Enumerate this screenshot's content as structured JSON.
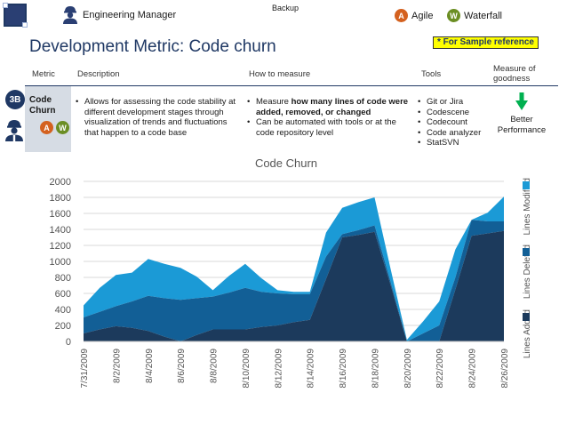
{
  "header": {
    "role_label": "Engineering Manager",
    "backup_label": "Backup",
    "agile_badge": "A",
    "agile_label": "Agile",
    "waterfall_badge": "W",
    "waterfall_label": "Waterfall"
  },
  "title": "Development Metric: Code churn",
  "reference_note": "* For Sample reference",
  "table": {
    "headers": {
      "metric": "Metric",
      "description": "Description",
      "how": "How to measure",
      "tools": "Tools",
      "goodness": "Measure of goodness"
    },
    "row": {
      "id": "3B",
      "metric_name": "Code Churn",
      "badge_a": "A",
      "badge_w": "W",
      "description": [
        "Allows for assessing the code stability at different development stages through visualization of trends and fluctuations that happen to a code base"
      ],
      "how_to_measure": [
        {
          "before": "Measure ",
          "bold": "how many lines of code were added, removed, or changed",
          "after": ""
        },
        {
          "before": "Can be automated with tools or at the code repository level",
          "bold": "",
          "after": ""
        }
      ],
      "tools": [
        "Git or Jira",
        "Codescene",
        "Codecount",
        "Code analyzer",
        "StatSVN"
      ],
      "goodness": "Better Performance"
    }
  },
  "colors": {
    "navy": "#1f3864",
    "added": "#1c3a5c",
    "deleted": "#125f96",
    "modified": "#1b9ad6",
    "arrow": "#00b050"
  },
  "chart_data": {
    "type": "area",
    "title": "Code Churn",
    "categories": [
      "7/31/2009",
      "8/1/2009",
      "8/2/2009",
      "8/3/2009",
      "8/4/2009",
      "8/5/2009",
      "8/6/2009",
      "8/7/2009",
      "8/8/2009",
      "8/9/2009",
      "8/10/2009",
      "8/11/2009",
      "8/12/2009",
      "8/13/2009",
      "8/14/2009",
      "8/15/2009",
      "8/16/2009",
      "8/17/2009",
      "8/18/2009",
      "8/19/2009",
      "8/20/2009",
      "8/21/2009",
      "8/22/2009",
      "8/23/2009",
      "8/24/2009",
      "8/25/2009",
      "8/26/2009"
    ],
    "tick_labels": [
      "7/31/2009",
      "8/2/2009",
      "8/4/2009",
      "8/6/2009",
      "8/8/2009",
      "8/10/2009",
      "8/12/2009",
      "8/14/2009",
      "8/16/2009",
      "8/18/2009",
      "8/20/2009",
      "8/22/2009",
      "8/24/2009",
      "8/26/2009"
    ],
    "stacked": true,
    "ylim": [
      0,
      2000
    ],
    "yticks": [
      0,
      200,
      400,
      600,
      800,
      1000,
      1200,
      1400,
      1600,
      1800,
      2000
    ],
    "series": [
      {
        "name": "Lines Added",
        "values": [
          100,
          150,
          190,
          170,
          130,
          60,
          0,
          80,
          150,
          150,
          150,
          180,
          200,
          240,
          270,
          780,
          1300,
          1330,
          1370,
          700,
          0,
          0,
          0,
          650,
          1320,
          1350,
          1380
        ]
      },
      {
        "name": "Lines Deleted",
        "values": [
          200,
          220,
          250,
          330,
          440,
          480,
          520,
          460,
          410,
          460,
          520,
          440,
          400,
          350,
          320,
          280,
          40,
          60,
          80,
          40,
          0,
          100,
          200,
          150,
          200,
          150,
          120
        ]
      },
      {
        "name": "Lines Modified",
        "values": [
          150,
          300,
          390,
          360,
          460,
          430,
          400,
          270,
          80,
          210,
          300,
          170,
          40,
          30,
          30,
          300,
          330,
          350,
          350,
          160,
          20,
          150,
          300,
          350,
          0,
          110,
          310
        ]
      }
    ],
    "legend_position": "right-vertical",
    "grid": true
  }
}
